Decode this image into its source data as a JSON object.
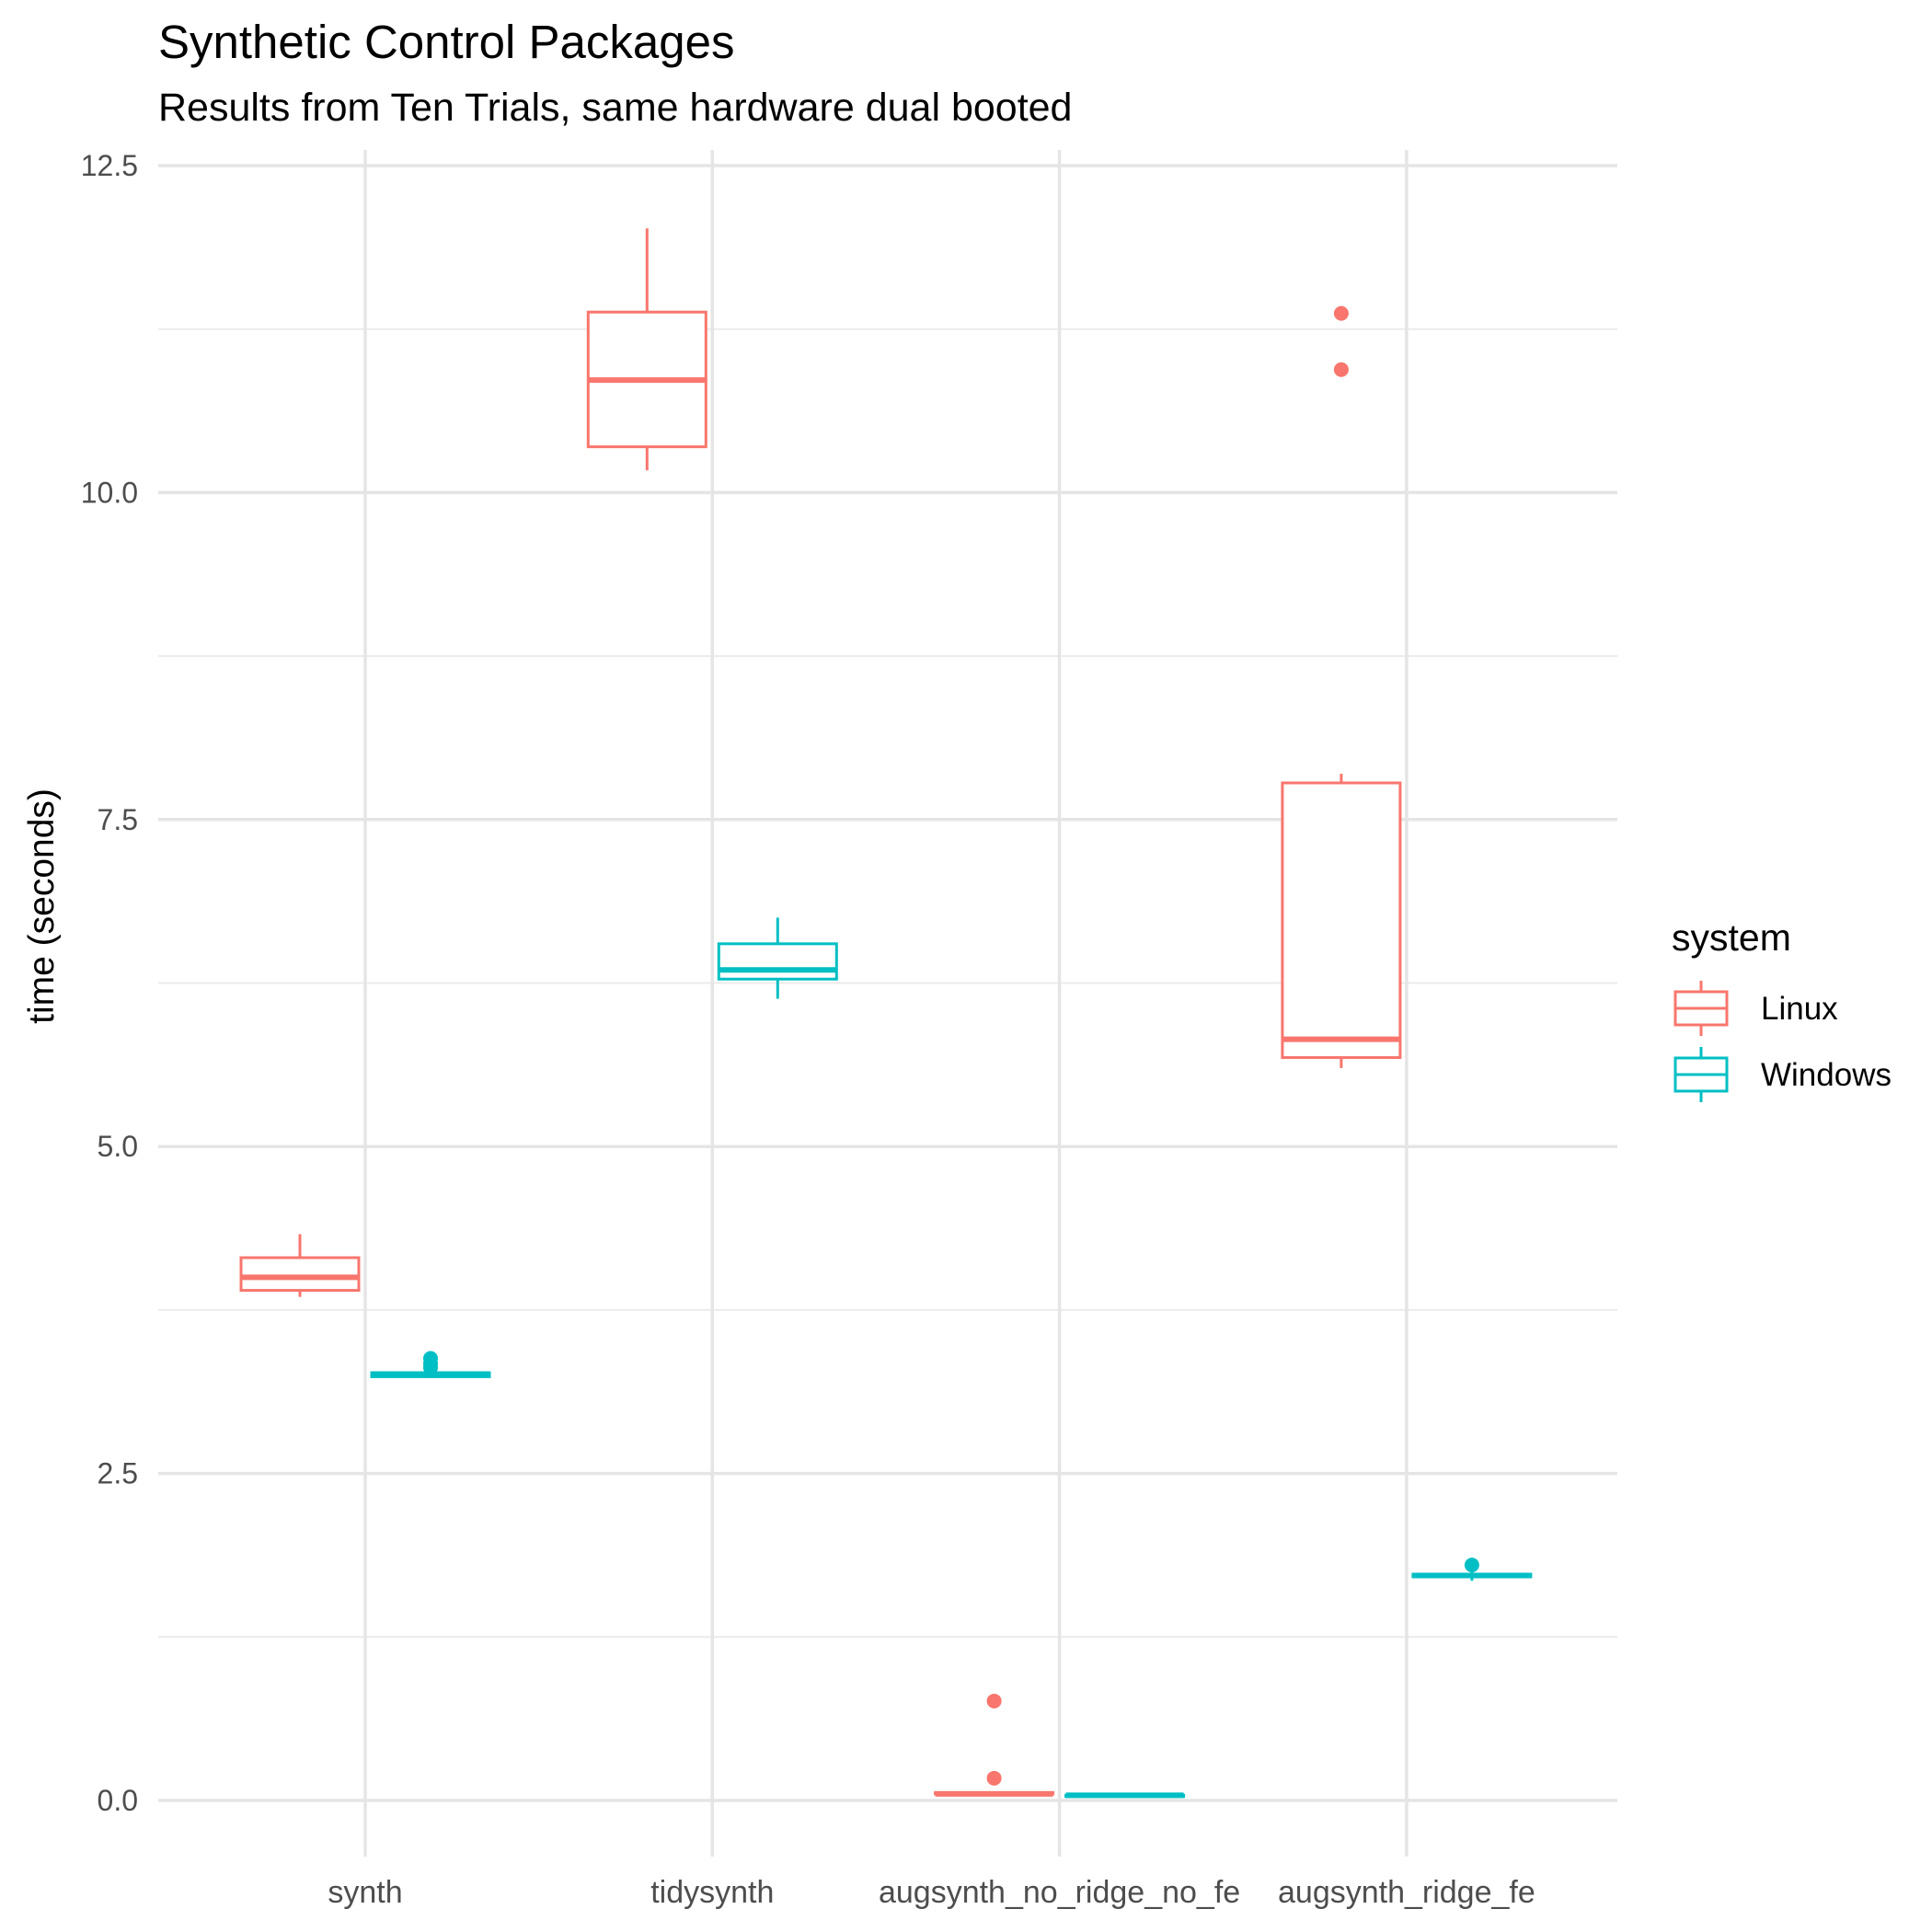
{
  "chart_data": {
    "type": "boxplot",
    "title": "Synthetic Control Packages",
    "subtitle": "Results from Ten Trials, same hardware dual booted",
    "xlabel": "",
    "ylabel": "time (seconds)",
    "ylim": [
      -0.5,
      12.6
    ],
    "yticks": [
      "0.0",
      "2.5",
      "5.0",
      "7.5",
      "10.0",
      "12.5"
    ],
    "ytick_values": [
      0,
      2.5,
      5,
      7.5,
      10,
      12.5
    ],
    "minor_ytick_values": [
      1.25,
      3.75,
      6.25,
      8.75,
      11.25
    ],
    "grid": true,
    "legend": {
      "title": "system",
      "position": "right"
    },
    "categories": [
      "synth",
      "tidysynth",
      "augsynth_no_ridge_no_fe",
      "augsynth_ridge_fe"
    ],
    "series": [
      {
        "name": "Linux",
        "color": "#F8766D",
        "boxes": [
          {
            "whisker_low": 3.85,
            "q1": 3.9,
            "median": 4.0,
            "q3": 4.15,
            "whisker_high": 4.33,
            "outliers": []
          },
          {
            "whisker_low": 10.17,
            "q1": 10.35,
            "median": 10.86,
            "q3": 11.38,
            "whisker_high": 12.02,
            "outliers": []
          },
          {
            "whisker_low": 0.05,
            "q1": 0.05,
            "median": 0.05,
            "q3": 0.06,
            "whisker_high": 0.06,
            "outliers": [
              0.76,
              0.17
            ]
          },
          {
            "whisker_low": 5.6,
            "q1": 5.68,
            "median": 5.82,
            "q3": 7.78,
            "whisker_high": 7.85,
            "outliers": [
              11.37,
              10.94
            ]
          }
        ]
      },
      {
        "name": "Windows",
        "color": "#00BFC4",
        "boxes": [
          {
            "whisker_low": 3.23,
            "q1": 3.24,
            "median": 3.26,
            "q3": 3.27,
            "whisker_high": 3.29,
            "outliers": [
              3.38,
              3.34,
              3.31
            ]
          },
          {
            "whisker_low": 6.13,
            "q1": 6.28,
            "median": 6.35,
            "q3": 6.55,
            "whisker_high": 6.75,
            "outliers": []
          },
          {
            "whisker_low": 0.03,
            "q1": 0.03,
            "median": 0.04,
            "q3": 0.04,
            "whisker_high": 0.04,
            "outliers": []
          },
          {
            "whisker_low": 1.68,
            "q1": 1.71,
            "median": 1.72,
            "q3": 1.73,
            "whisker_high": 1.75,
            "outliers": [
              1.8
            ]
          }
        ]
      }
    ]
  }
}
